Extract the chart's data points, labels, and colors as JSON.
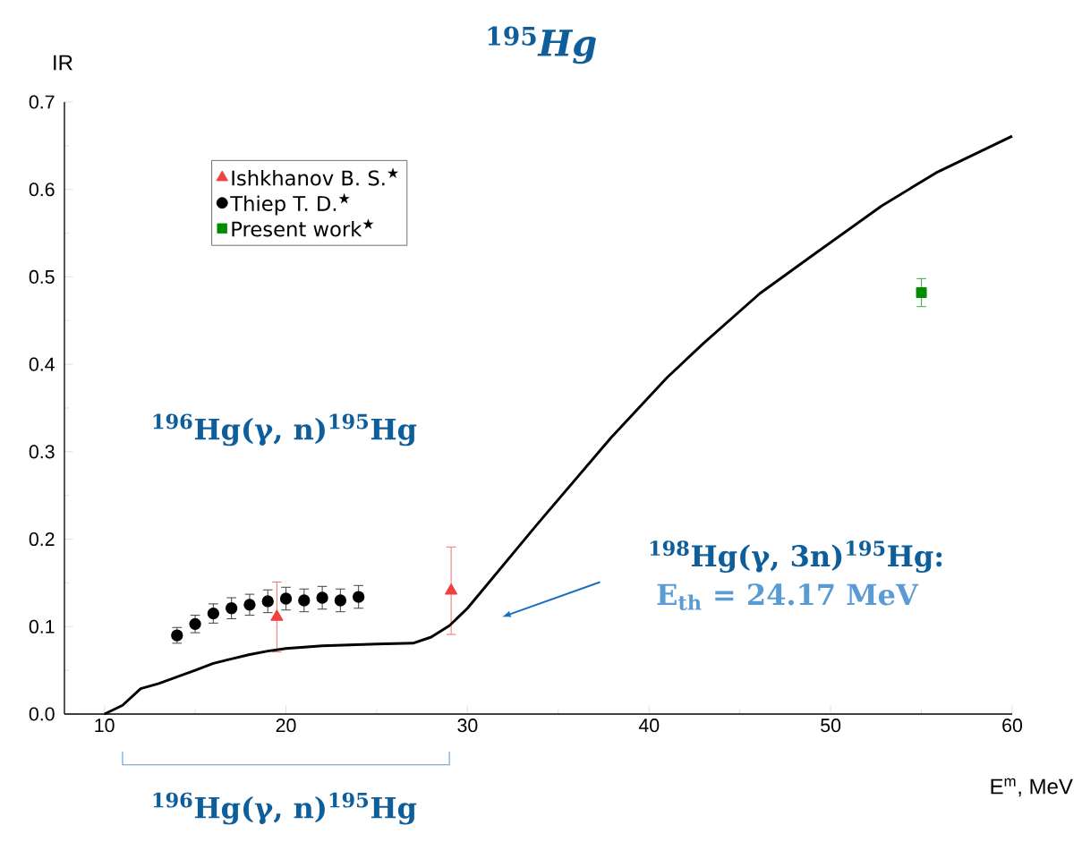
{
  "chart_data": {
    "type": "scatter",
    "title": "$^{195}$*Hg*",
    "xlabel": "E$^{m}$, MeV",
    "ylabel": "IR",
    "xlim": [
      7.8,
      60
    ],
    "ylim": [
      0,
      0.7
    ],
    "xticks": [
      10,
      20,
      30,
      40,
      50,
      60
    ],
    "yticks": [
      {
        "value": 0,
        "label": "0.0"
      },
      0.1,
      0.2,
      0.3,
      0.4,
      0.5,
      0.6,
      0.7
    ],
    "grid": false,
    "legend": "top left",
    "annotations": [
      "$^{196}$Hg(γ, n)$^{195}$Hg",
      "$^{196}$Hg(γ, n)$^{195}$Hg",
      "$^{198}$Hg(γ, 3n)$^{195}$Hg:",
      "E$_{th}$ = 24.17  MeV"
    ],
    "series": [
      {
        "name": "Ishkhanov B. S.$^{★}$",
        "marker": "triangle",
        "color": "#f04040",
        "x": [
          19.5,
          29.1
        ],
        "values": [
          0.111,
          0.141
        ],
        "errors": [
          0.04,
          0.05
        ]
      },
      {
        "name": "Thiep T. D.$^{★}$",
        "marker": "circle",
        "color": "#000000",
        "x": [
          14,
          15,
          16,
          17,
          18,
          19,
          20,
          21,
          22,
          23,
          24
        ],
        "values": [
          0.09,
          0.103,
          0.115,
          0.121,
          0.125,
          0.129,
          0.132,
          0.13,
          0.133,
          0.13,
          0.134
        ],
        "errors": [
          0.009,
          0.01,
          0.011,
          0.012,
          0.012,
          0.013,
          0.013,
          0.013,
          0.013,
          0.013,
          0.013
        ]
      },
      {
        "name": "Present work$^{★}$",
        "marker": "square",
        "color": "#008c00",
        "x": [
          55
        ],
        "values": [
          0.482
        ],
        "errors": [
          0.016
        ]
      },
      {
        "type": "line",
        "marker": "none",
        "color": "#000000",
        "x": [
          10,
          11,
          12,
          13,
          15,
          16,
          17,
          18,
          19,
          20,
          22,
          25,
          27,
          28,
          29,
          30,
          33.8,
          37.9,
          41,
          43,
          46.1,
          49.1,
          52.8,
          55.8,
          60
        ],
        "values": [
          0,
          0.01,
          0.029,
          0.035,
          0.05,
          0.058,
          0.063,
          0.068,
          0.072,
          0.075,
          0.078,
          0.08,
          0.081,
          0.088,
          0.101,
          0.121,
          0.216,
          0.316,
          0.385,
          0.424,
          0.481,
          0.526,
          0.581,
          0.619,
          0.661
        ]
      }
    ]
  }
}
